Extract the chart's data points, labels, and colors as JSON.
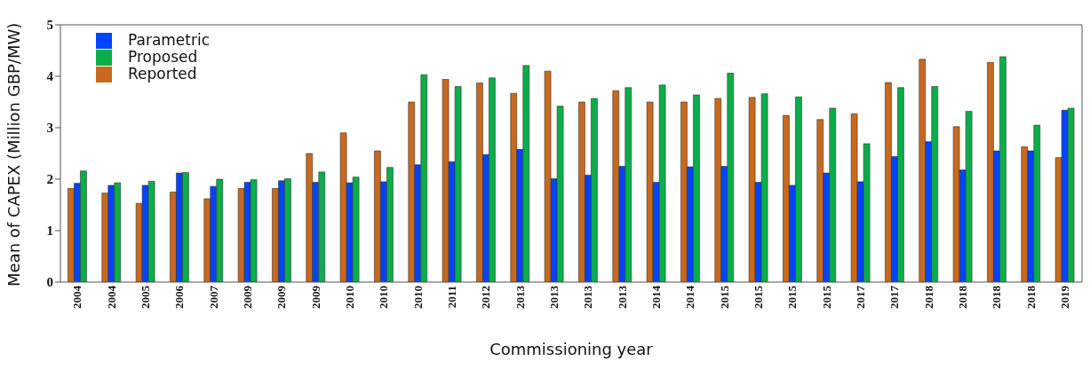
{
  "chart_data": {
    "type": "bar",
    "xlabel": "Commissioning year",
    "ylabel": "Mean of CAPEX (Million GBP/MW)",
    "categories": [
      "2004",
      "2004",
      "2005",
      "2006",
      "2007",
      "2009",
      "2009",
      "2009",
      "2010",
      "2010",
      "2010",
      "2011",
      "2012",
      "2013",
      "2013",
      "2013",
      "2013",
      "2014",
      "2014",
      "2015",
      "2015",
      "2015",
      "2015",
      "2017",
      "2017",
      "2018",
      "2018",
      "2018",
      "2018",
      "2019"
    ],
    "series": [
      {
        "name": "Reported",
        "color": "#c8691e",
        "values": [
          1.82,
          1.73,
          1.53,
          1.75,
          1.62,
          1.82,
          1.82,
          2.5,
          2.9,
          2.55,
          3.5,
          3.94,
          3.87,
          3.67,
          4.1,
          3.5,
          3.72,
          3.5,
          3.5,
          3.57,
          3.59,
          3.24,
          3.16,
          3.27,
          3.88,
          4.33,
          3.02,
          4.27,
          2.63,
          2.42
        ]
      },
      {
        "name": "Parametric",
        "color": "#0044ff",
        "values": [
          1.92,
          1.88,
          1.88,
          2.12,
          1.86,
          1.94,
          1.97,
          1.94,
          1.93,
          1.95,
          2.28,
          2.34,
          2.48,
          2.58,
          2.01,
          2.08,
          2.25,
          1.94,
          2.24,
          2.25,
          1.94,
          1.88,
          2.12,
          1.95,
          2.44,
          2.73,
          2.18,
          2.55,
          2.55,
          3.34
        ]
      },
      {
        "name": "Proposed",
        "color": "#0aae48",
        "values": [
          2.16,
          1.93,
          1.96,
          2.13,
          2.0,
          1.99,
          2.01,
          2.14,
          2.04,
          2.23,
          4.03,
          3.8,
          3.97,
          4.21,
          3.42,
          3.57,
          3.78,
          3.83,
          3.64,
          4.06,
          3.66,
          3.6,
          3.38,
          2.69,
          3.78,
          3.8,
          3.32,
          4.38,
          3.05,
          3.38
        ]
      }
    ],
    "ylim": [
      0,
      5
    ],
    "yticks": [
      0,
      1,
      2,
      3,
      4,
      5
    ],
    "legend": "top left"
  }
}
